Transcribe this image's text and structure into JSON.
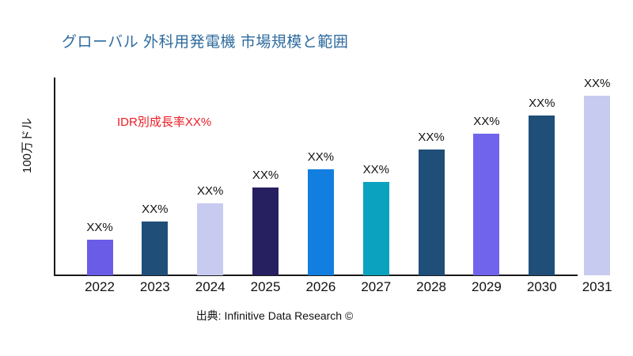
{
  "title": "グローバル 外科用発電機 市場規模と範囲",
  "annotation": {
    "text": "IDR別成長率XX%",
    "color": "#EC1C24"
  },
  "source": "出典: Infinitive Data Research ©",
  "colors": {
    "title": "#2E6B9E",
    "axis": "#1a1a1a",
    "background": "#ffffff"
  },
  "chart_data": {
    "type": "bar",
    "title": "グローバル 外科用発電機 市場規模と範囲",
    "xlabel": "",
    "ylabel": "100万ドル",
    "ylim": [
      0,
      100
    ],
    "grid": false,
    "legend": false,
    "categories": [
      "2022",
      "2023",
      "2024",
      "2025",
      "2026",
      "2027",
      "2028",
      "2029",
      "2030",
      "2031"
    ],
    "values": [
      20,
      30,
      40,
      49,
      59,
      52,
      70,
      79,
      89,
      100
    ],
    "value_labels": [
      "XX%",
      "XX%",
      "XX%",
      "XX%",
      "XX%",
      "XX%",
      "XX%",
      "XX%",
      "XX%",
      "XX%"
    ],
    "bars": [
      {
        "year": "2022",
        "label": "XX%",
        "value": 20,
        "color": "#6B5CE7"
      },
      {
        "year": "2023",
        "label": "XX%",
        "value": 30,
        "color": "#1F4E79"
      },
      {
        "year": "2024",
        "label": "XX%",
        "value": 40,
        "color": "#C8CBF0"
      },
      {
        "year": "2025",
        "label": "XX%",
        "value": 49,
        "color": "#262060"
      },
      {
        "year": "2026",
        "label": "XX%",
        "value": 59,
        "color": "#127FE0"
      },
      {
        "year": "2027",
        "label": "XX%",
        "value": 52,
        "color": "#0AA2BE"
      },
      {
        "year": "2028",
        "label": "XX%",
        "value": 70,
        "color": "#1F4E79"
      },
      {
        "year": "2029",
        "label": "XX%",
        "value": 79,
        "color": "#7164EC"
      },
      {
        "year": "2030",
        "label": "XX%",
        "value": 89,
        "color": "#1F4E79"
      },
      {
        "year": "2031",
        "label": "XX%",
        "value": 100,
        "color": "#C8CBF0"
      }
    ]
  }
}
